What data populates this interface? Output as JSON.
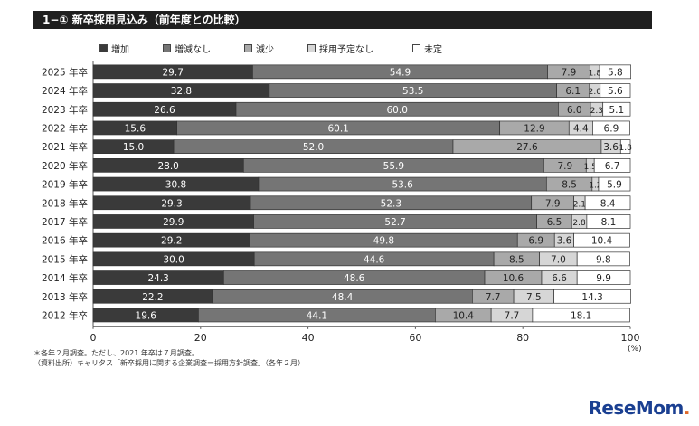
{
  "header": {
    "title": "1−① 新卒採用見込み（前年度との比較）"
  },
  "legend": [
    {
      "label": "増加",
      "color": "#3a3a3a"
    },
    {
      "label": "増減なし",
      "color": "#757575"
    },
    {
      "label": "減少",
      "color": "#a9a9a9"
    },
    {
      "label": "採用予定なし",
      "color": "#d6d6d6"
    },
    {
      "label": "未定",
      "color": "#ffffff"
    }
  ],
  "chart_data": {
    "type": "bar",
    "orientation": "horizontal",
    "stacked": true,
    "categories": [
      "2025 年卒",
      "2024 年卒",
      "2023 年卒",
      "2022 年卒",
      "2021 年卒",
      "2020 年卒",
      "2019 年卒",
      "2018 年卒",
      "2017 年卒",
      "2016 年卒",
      "2015 年卒",
      "2014 年卒",
      "2013 年卒",
      "2012 年卒"
    ],
    "series": [
      {
        "name": "増加",
        "values": [
          29.7,
          32.8,
          26.6,
          15.6,
          15.0,
          28.0,
          30.8,
          29.3,
          29.9,
          29.2,
          30.0,
          24.3,
          22.2,
          19.6
        ]
      },
      {
        "name": "増減なし",
        "values": [
          54.9,
          53.5,
          60.0,
          60.1,
          52.0,
          55.9,
          53.6,
          52.3,
          52.7,
          49.8,
          44.6,
          48.6,
          48.4,
          44.1
        ]
      },
      {
        "name": "減少",
        "values": [
          7.9,
          6.1,
          6.0,
          12.9,
          27.6,
          7.9,
          8.5,
          7.9,
          6.5,
          6.9,
          8.5,
          10.6,
          7.7,
          10.4
        ]
      },
      {
        "name": "採用予定なし",
        "values": [
          1.8,
          2.0,
          2.3,
          4.4,
          3.6,
          1.5,
          1.2,
          2.1,
          2.8,
          3.6,
          7.0,
          6.6,
          7.5,
          7.7
        ]
      },
      {
        "name": "未定",
        "values": [
          5.8,
          5.6,
          5.1,
          6.9,
          1.8,
          6.7,
          5.9,
          8.4,
          8.1,
          10.4,
          9.8,
          9.9,
          14.3,
          18.1
        ]
      }
    ],
    "xlim": [
      0,
      100
    ],
    "xticks": [
      "0",
      "20",
      "40",
      "60",
      "80",
      "100"
    ],
    "xunit": "(%)"
  },
  "notes": [
    "＊各年２月調査。ただし、2021 年卒は７月調査。",
    "（資料出所）キャリタス「新卒採用に関する企業調査ー採用方針調査」（各年２月）"
  ],
  "logo": {
    "text": "ReseMom",
    "dot": "."
  }
}
